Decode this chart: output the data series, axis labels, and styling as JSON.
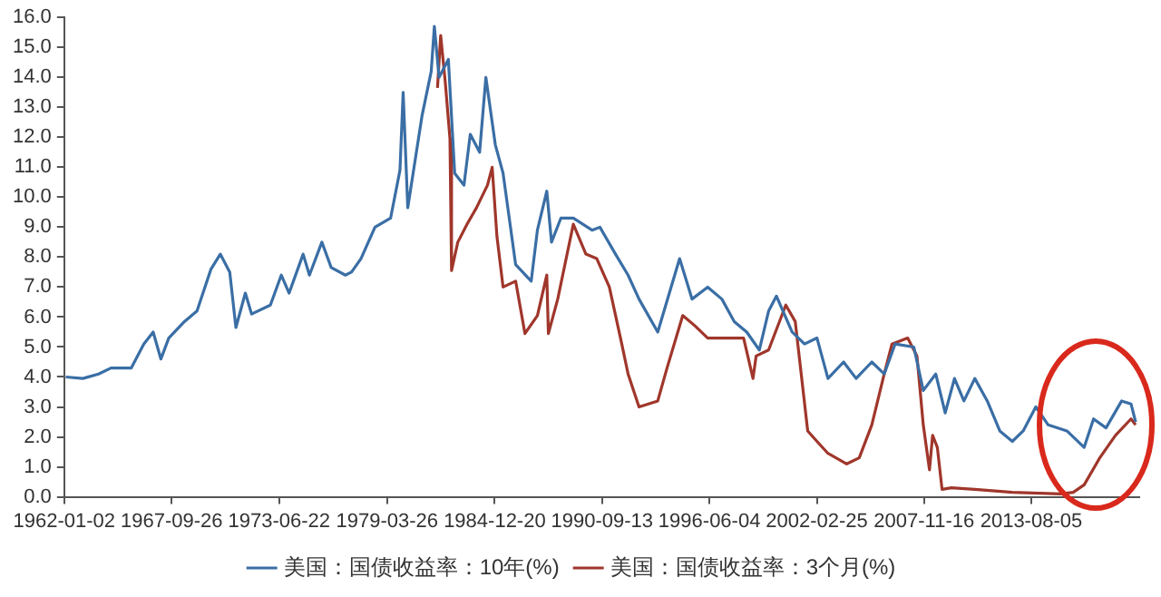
{
  "chart_data": {
    "type": "line",
    "xlim": [
      "1962-01-02",
      "2019-05-10"
    ],
    "xticks": [
      "1962-01-02",
      "1967-09-26",
      "1973-06-22",
      "1979-03-26",
      "1984-12-20",
      "1990-09-13",
      "1996-06-04",
      "2002-02-25",
      "2007-11-16",
      "2013-08-05"
    ],
    "ylim": [
      0,
      16
    ],
    "yticks": [
      {
        "value": 0,
        "label": "0.0"
      },
      {
        "value": 1,
        "label": "1.0"
      },
      {
        "value": 2,
        "label": "2.0"
      },
      {
        "value": 3,
        "label": "3.0"
      },
      {
        "value": 4,
        "label": "4.0"
      },
      {
        "value": 5,
        "label": "5.0"
      },
      {
        "value": 6,
        "label": "6.0"
      },
      {
        "value": 7,
        "label": "7.0"
      },
      {
        "value": 8,
        "label": "8.0"
      },
      {
        "value": 9,
        "label": "9.0"
      },
      {
        "value": 10,
        "label": "10.0"
      },
      {
        "value": 11,
        "label": "11.0"
      },
      {
        "value": 12,
        "label": "12.0"
      },
      {
        "value": 13,
        "label": "13.0"
      },
      {
        "value": 14,
        "label": "14.0"
      },
      {
        "value": 15,
        "label": "15.0"
      },
      {
        "value": 16,
        "label": "16.0"
      }
    ],
    "grid": false,
    "legend": "bottom",
    "marker": "none",
    "line_style": "solid",
    "series": [
      {
        "name": "美国：国债收益率：10年(%)",
        "color": "#3a6ea5",
        "x": [
          "1962-02",
          "1963-01",
          "1963-11",
          "1964-07",
          "1965-08",
          "1966-04",
          "1966-10",
          "1967-03",
          "1967-08",
          "1968-06",
          "1969-02",
          "1969-11",
          "1970-05",
          "1970-11",
          "1971-03",
          "1971-09",
          "1972-01",
          "1973-01",
          "1973-08",
          "1974-01",
          "1974-10",
          "1975-02",
          "1975-10",
          "1976-04",
          "1977-01",
          "1977-05",
          "1977-11",
          "1978-08",
          "1979-06",
          "1979-12",
          "1980-02",
          "1980-05",
          "1981-02",
          "1981-08",
          "1981-10",
          "1982-01",
          "1982-07",
          "1982-11",
          "1983-05",
          "1983-09",
          "1984-03",
          "1984-07",
          "1985-01",
          "1985-06",
          "1986-02",
          "1986-12",
          "1987-04",
          "1987-10",
          "1988-01",
          "1988-07",
          "1989-03",
          "1990-03",
          "1990-08",
          "1991-06",
          "1992-02",
          "1992-09",
          "1993-09",
          "1994-11",
          "1995-07",
          "1996-05",
          "1997-02",
          "1997-10",
          "1998-06",
          "1999-02",
          "1999-08",
          "2000-01",
          "2000-11",
          "2001-07",
          "2002-03",
          "2002-10",
          "2003-08",
          "2004-04",
          "2005-02",
          "2005-10",
          "2006-05",
          "2007-05",
          "2007-11",
          "2008-07",
          "2009-01",
          "2009-07",
          "2010-01",
          "2010-08",
          "2011-04",
          "2011-12",
          "2012-08",
          "2013-03",
          "2013-11",
          "2014-07",
          "2015-07",
          "2016-06",
          "2016-12",
          "2017-08",
          "2018-06",
          "2018-12",
          "2019-03"
        ],
        "values": [
          4.0,
          3.95,
          4.1,
          4.3,
          4.3,
          5.1,
          5.5,
          4.6,
          5.3,
          5.85,
          6.2,
          7.6,
          8.1,
          7.5,
          5.65,
          6.8,
          6.1,
          6.4,
          7.4,
          6.8,
          8.1,
          7.4,
          8.5,
          7.65,
          7.4,
          7.5,
          7.95,
          9.0,
          9.3,
          10.9,
          13.5,
          9.65,
          12.7,
          14.2,
          15.7,
          14.0,
          14.6,
          10.8,
          10.4,
          12.1,
          11.5,
          14.0,
          11.75,
          10.8,
          7.75,
          7.2,
          8.9,
          10.2,
          8.5,
          9.3,
          9.3,
          8.9,
          9.0,
          8.1,
          7.4,
          6.6,
          5.5,
          7.95,
          6.6,
          7.0,
          6.6,
          5.85,
          5.5,
          4.9,
          6.2,
          6.7,
          5.5,
          5.1,
          5.3,
          3.95,
          4.5,
          3.95,
          4.5,
          4.1,
          5.1,
          5.0,
          3.55,
          4.1,
          2.8,
          3.95,
          3.2,
          3.95,
          3.2,
          2.2,
          1.85,
          2.2,
          3.0,
          2.4,
          2.2,
          1.65,
          2.6,
          2.3,
          3.2,
          3.1,
          2.5
        ]
      },
      {
        "name": "美国：国债收益率：3个月(%)",
        "color": "#a0362b",
        "x": [
          "1981-12",
          "1982-02",
          "1982-05",
          "1982-08",
          "1982-09",
          "1983-01",
          "1983-07",
          "1984-01",
          "1984-08",
          "1984-11",
          "1985-02",
          "1985-06",
          "1986-02",
          "1986-08",
          "1987-04",
          "1987-10",
          "1987-11",
          "1988-05",
          "1989-03",
          "1989-11",
          "1990-06",
          "1991-02",
          "1991-10",
          "1992-02",
          "1992-09",
          "1993-09",
          "1994-03",
          "1995-01",
          "1995-09",
          "1996-05",
          "1998-04",
          "1998-10",
          "1998-12",
          "1999-08",
          "2000-07",
          "2001-01",
          "2001-09",
          "2002-03",
          "2002-10",
          "2003-10",
          "2004-06",
          "2005-02",
          "2005-10",
          "2006-03",
          "2007-01",
          "2007-07",
          "2007-11",
          "2008-03",
          "2008-05",
          "2008-08",
          "2008-11",
          "2009-05",
          "2010-08",
          "2012-08",
          "2015-03",
          "2015-11",
          "2016-06",
          "2017-04",
          "2018-02",
          "2018-12",
          "2019-03"
        ],
        "values": [
          13.65,
          15.4,
          13.85,
          11.95,
          7.55,
          8.5,
          9.1,
          9.65,
          10.4,
          11.0,
          8.7,
          7.0,
          7.2,
          5.45,
          6.05,
          7.4,
          5.45,
          6.6,
          9.1,
          8.1,
          7.95,
          7.0,
          5.1,
          4.1,
          3.0,
          3.2,
          4.3,
          6.05,
          5.7,
          5.3,
          5.3,
          3.95,
          4.7,
          4.9,
          6.4,
          5.85,
          2.2,
          1.85,
          1.45,
          1.1,
          1.3,
          2.4,
          4.1,
          5.1,
          5.3,
          4.7,
          2.4,
          0.9,
          2.05,
          1.65,
          0.25,
          0.3,
          0.25,
          0.15,
          0.1,
          0.15,
          0.4,
          1.3,
          2.05,
          2.6,
          2.4
        ]
      }
    ]
  }
}
